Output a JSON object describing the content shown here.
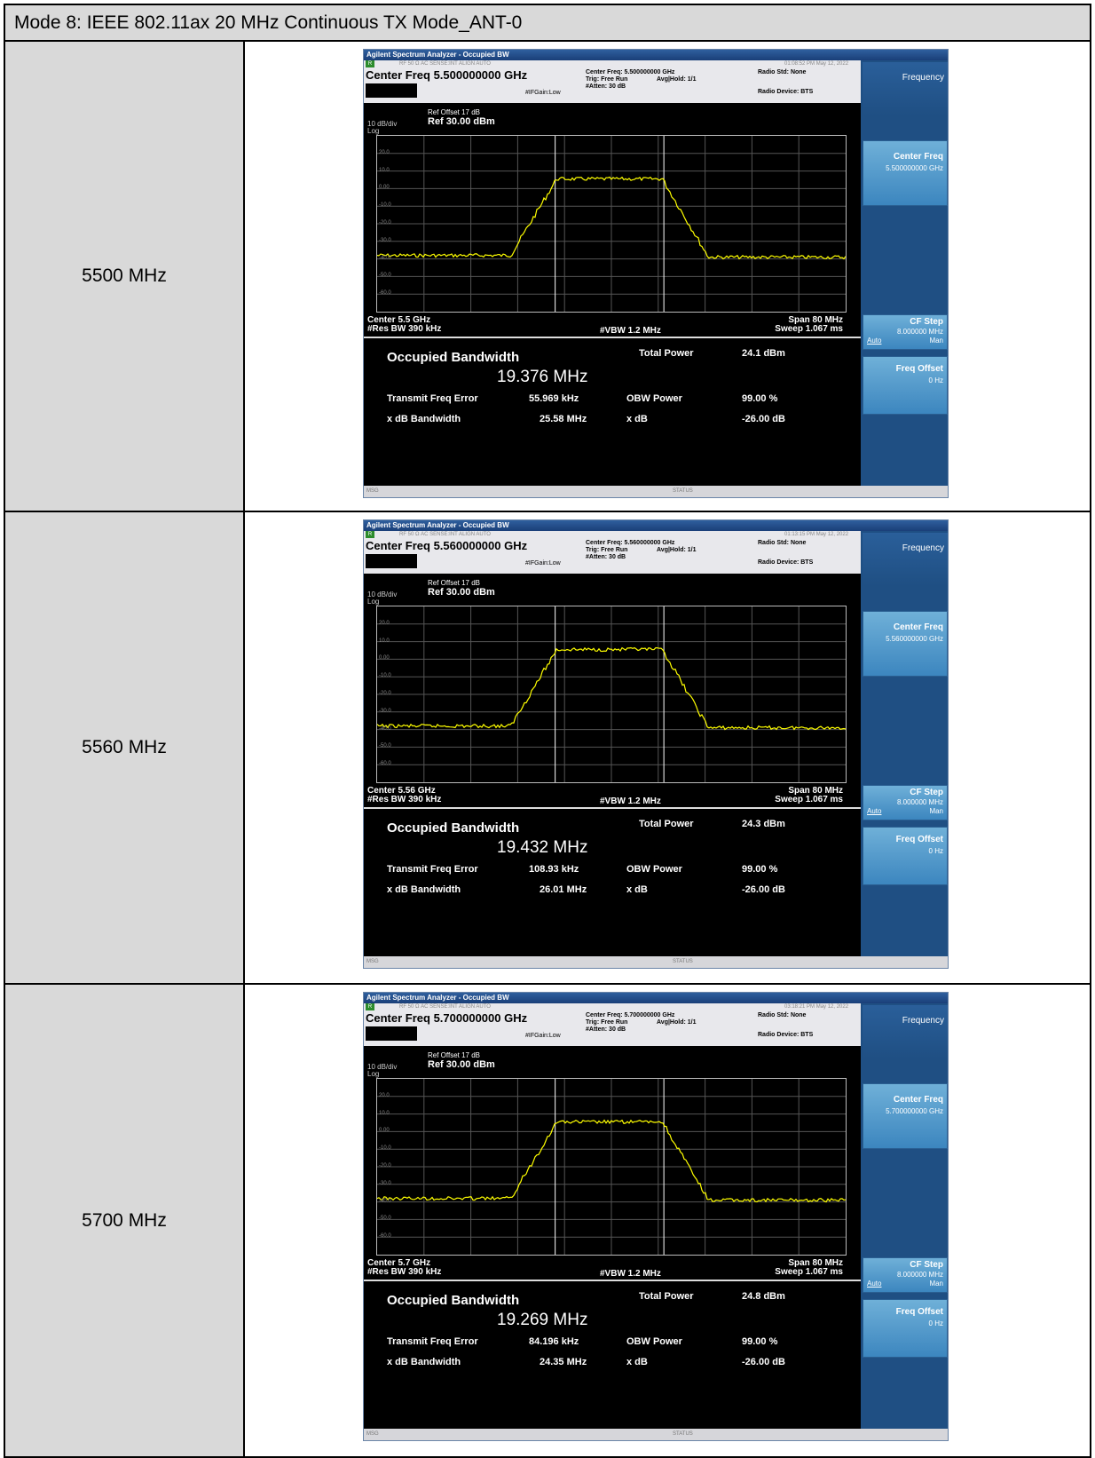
{
  "header": "Mode 8: IEEE 802.11ax 20 MHz Continuous TX Mode_ANT-0",
  "rows": [
    {
      "label": "5500 MHz",
      "sa": {
        "title": "Agilent Spectrum Analyzer - Occupied BW",
        "status_top": "RF  50 Ω  AC  SENSE:INT  ALIGN AUTO",
        "timestamp": "01:08:52 PM May 12, 2022",
        "center_freq": "Center Freq  5.500000000 GHz",
        "center_freq_small": "Center Freq: 5.500000000 GHz",
        "trig": "Trig: Free Run",
        "avg_hold": "Avg|Hold: 1/1",
        "atten": "#Atten: 30 dB",
        "ifgain": "#IFGain:Low",
        "radio_std": "Radio Std: None",
        "radio_device": "Radio Device: BTS",
        "ref_offset": "Ref Offset 17 dB",
        "ref_level": "Ref 30.00 dBm",
        "db_div": "10 dB/div",
        "log": "Log",
        "center_label": "Center  5.5 GHz",
        "res_bw": "#Res BW  390 kHz",
        "vbw": "#VBW  1.2 MHz",
        "span": "Span 80 MHz",
        "sweep": "Sweep  1.067 ms",
        "obw_title": "Occupied Bandwidth",
        "obw_value": "19.376 MHz",
        "total_power_label": "Total Power",
        "total_power": "24.1 dBm",
        "tfe_label": "Transmit Freq Error",
        "tfe": "55.969 kHz",
        "obw_power_label": "OBW Power",
        "obw_power": "99.00 %",
        "xdb_bw_label": "x dB Bandwidth",
        "xdb_bw": "25.58 MHz",
        "xdb_label": "x dB",
        "xdb": "-26.00 dB",
        "msg": "MSG",
        "status": "STATUS",
        "sk_frequency": "Frequency",
        "sk_center_freq": "Center Freq",
        "sk_center_freq_val": "5.500000000 GHz",
        "sk_cf_step": "CF Step",
        "sk_cf_step_val": "8.000000 MHz",
        "sk_auto": "Auto",
        "sk_man": "Man",
        "sk_freq_offset": "Freq Offset",
        "sk_freq_offset_val": "0 Hz"
      }
    },
    {
      "label": "5560 MHz",
      "sa": {
        "title": "Agilent Spectrum Analyzer - Occupied BW",
        "status_top": "RF  50 Ω  AC  SENSE:INT  ALIGN AUTO",
        "timestamp": "01:13:15 PM May 12, 2022",
        "center_freq": "Center Freq  5.560000000 GHz",
        "center_freq_small": "Center Freq: 5.560000000 GHz",
        "trig": "Trig: Free Run",
        "avg_hold": "Avg|Hold: 1/1",
        "atten": "#Atten: 30 dB",
        "ifgain": "#IFGain:Low",
        "radio_std": "Radio Std: None",
        "radio_device": "Radio Device: BTS",
        "ref_offset": "Ref Offset 17 dB",
        "ref_level": "Ref 30.00 dBm",
        "db_div": "10 dB/div",
        "log": "Log",
        "center_label": "Center  5.56 GHz",
        "res_bw": "#Res BW  390 kHz",
        "vbw": "#VBW  1.2 MHz",
        "span": "Span 80 MHz",
        "sweep": "Sweep  1.067 ms",
        "obw_title": "Occupied Bandwidth",
        "obw_value": "19.432 MHz",
        "total_power_label": "Total Power",
        "total_power": "24.3 dBm",
        "tfe_label": "Transmit Freq Error",
        "tfe": "108.93 kHz",
        "obw_power_label": "OBW Power",
        "obw_power": "99.00 %",
        "xdb_bw_label": "x dB Bandwidth",
        "xdb_bw": "26.01 MHz",
        "xdb_label": "x dB",
        "xdb": "-26.00 dB",
        "msg": "MSG",
        "status": "STATUS",
        "sk_frequency": "Frequency",
        "sk_center_freq": "Center Freq",
        "sk_center_freq_val": "5.560000000 GHz",
        "sk_cf_step": "CF Step",
        "sk_cf_step_val": "8.000000 MHz",
        "sk_auto": "Auto",
        "sk_man": "Man",
        "sk_freq_offset": "Freq Offset",
        "sk_freq_offset_val": "0 Hz"
      }
    },
    {
      "label": "5700 MHz",
      "sa": {
        "title": "Agilent Spectrum Analyzer - Occupied BW",
        "status_top": "RF  50 Ω  AC  SENSE:INT  ALIGN AUTO",
        "timestamp": "03:18:21 PM May 12, 2022",
        "center_freq": "Center Freq  5.700000000 GHz",
        "center_freq_small": "Center Freq: 5.700000000 GHz",
        "trig": "Trig: Free Run",
        "avg_hold": "Avg|Hold: 1/1",
        "atten": "#Atten: 30 dB",
        "ifgain": "#IFGain:Low",
        "radio_std": "Radio Std: None",
        "radio_device": "Radio Device: BTS",
        "ref_offset": "Ref Offset 17 dB",
        "ref_level": "Ref 30.00 dBm",
        "db_div": "10 dB/div",
        "log": "Log",
        "center_label": "Center  5.7 GHz",
        "res_bw": "#Res BW  390 kHz",
        "vbw": "#VBW  1.2 MHz",
        "span": "Span 80 MHz",
        "sweep": "Sweep  1.067 ms",
        "obw_title": "Occupied Bandwidth",
        "obw_value": "19.269 MHz",
        "total_power_label": "Total Power",
        "total_power": "24.8 dBm",
        "tfe_label": "Transmit Freq Error",
        "tfe": "84.196 kHz",
        "obw_power_label": "OBW Power",
        "obw_power": "99.00 %",
        "xdb_bw_label": "x dB Bandwidth",
        "xdb_bw": "24.35 MHz",
        "xdb_label": "x dB",
        "xdb": "-26.00 dB",
        "msg": "MSG",
        "status": "STATUS",
        "sk_frequency": "Frequency",
        "sk_center_freq": "Center Freq",
        "sk_center_freq_val": "5.700000000 GHz",
        "sk_cf_step": "CF Step",
        "sk_cf_step_val": "8.000000 MHz",
        "sk_auto": "Auto",
        "sk_man": "Man",
        "sk_freq_offset": "Freq Offset",
        "sk_freq_offset_val": "0 Hz"
      }
    }
  ],
  "y_ticks": [
    "20.0",
    "10.0",
    "0.00",
    "-10.0",
    "-20.0",
    "-30.0",
    "-40.0",
    "-50.0",
    "-60.0"
  ],
  "trace_color": "#ffff00"
}
